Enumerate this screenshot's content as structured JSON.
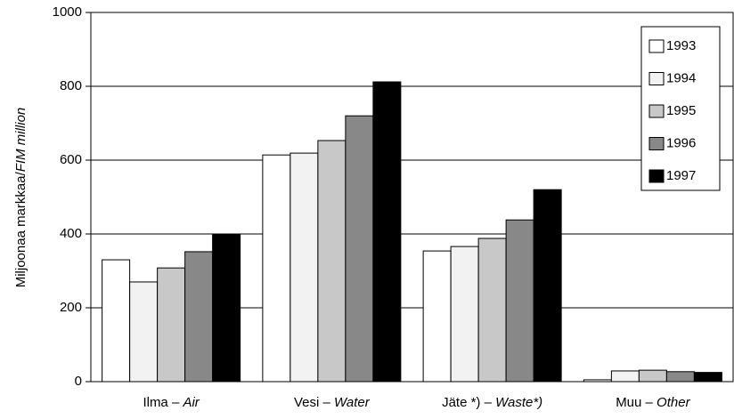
{
  "chart_data": {
    "type": "bar",
    "ylabel": [
      "Miljoonaa markkaa/",
      "FIM million"
    ],
    "categories": [
      [
        "Ilma – ",
        "Air"
      ],
      [
        "Vesi – ",
        "Water"
      ],
      [
        "Jäte *) – ",
        "Waste*)"
      ],
      [
        "Muu – ",
        "Other"
      ]
    ],
    "series": [
      {
        "name": "1993",
        "color": "#ffffff",
        "values": [
          330,
          614,
          354,
          5
        ]
      },
      {
        "name": "1994",
        "color": "#f2f2f2",
        "values": [
          270,
          619,
          366,
          29
        ]
      },
      {
        "name": "1995",
        "color": "#c8c8c8",
        "values": [
          308,
          653,
          388,
          31
        ]
      },
      {
        "name": "1996",
        "color": "#888888",
        "values": [
          352,
          720,
          438,
          27
        ]
      },
      {
        "name": "1997",
        "color": "#000000",
        "values": [
          400,
          812,
          520,
          25
        ]
      }
    ],
    "ylim": [
      0,
      1000
    ],
    "yticks": [
      0,
      200,
      400,
      600,
      800,
      1000
    ],
    "grid": true,
    "legend": "upper right"
  }
}
